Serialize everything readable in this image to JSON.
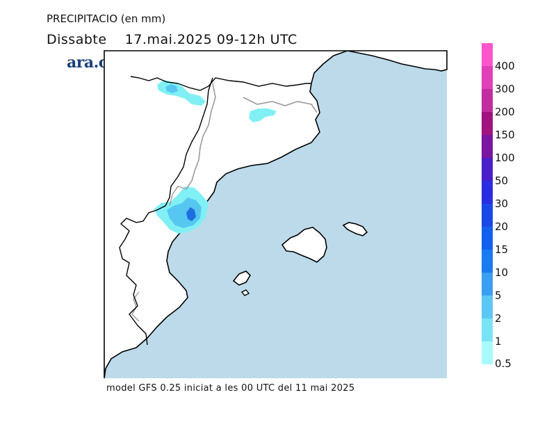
{
  "header": {
    "variable": "PRECIPITACIO (en mm)",
    "day": "Dissabte",
    "date": "17.mai.2025",
    "period": "09-12h UTC"
  },
  "brand": {
    "name": "ara.cat",
    "color": "#1a3f7a"
  },
  "footer": {
    "caption": "model GFS 0.25 iniciat a les 00 UTC del 11 mai 2025"
  },
  "map": {
    "sea_color": "#bcdaea",
    "land_color": "#ffffff",
    "coast_color": "#000000",
    "border_color": "#9a9a9a",
    "precip_colors": {
      "light": "#80f0f5",
      "medium": "#55c7f0",
      "heavy": "#1f6ee0"
    }
  },
  "legend": {
    "entries": [
      {
        "label": "400",
        "color": "#ff55cc"
      },
      {
        "label": "300",
        "color": "#e040b8"
      },
      {
        "label": "200",
        "color": "#c02ea0"
      },
      {
        "label": "150",
        "color": "#a0147e"
      },
      {
        "label": "100",
        "color": "#7a16a0"
      },
      {
        "label": "50",
        "color": "#4a1ec8"
      },
      {
        "label": "30",
        "color": "#2a2ee0"
      },
      {
        "label": "20",
        "color": "#1a48e6"
      },
      {
        "label": "15",
        "color": "#1260ee"
      },
      {
        "label": "10",
        "color": "#1a7af0"
      },
      {
        "label": "5",
        "color": "#3a9ef2"
      },
      {
        "label": "2",
        "color": "#5cc6f4"
      },
      {
        "label": "1",
        "color": "#7ae4f6"
      },
      {
        "label": "0.5",
        "color": "#a8fafc"
      }
    ]
  }
}
